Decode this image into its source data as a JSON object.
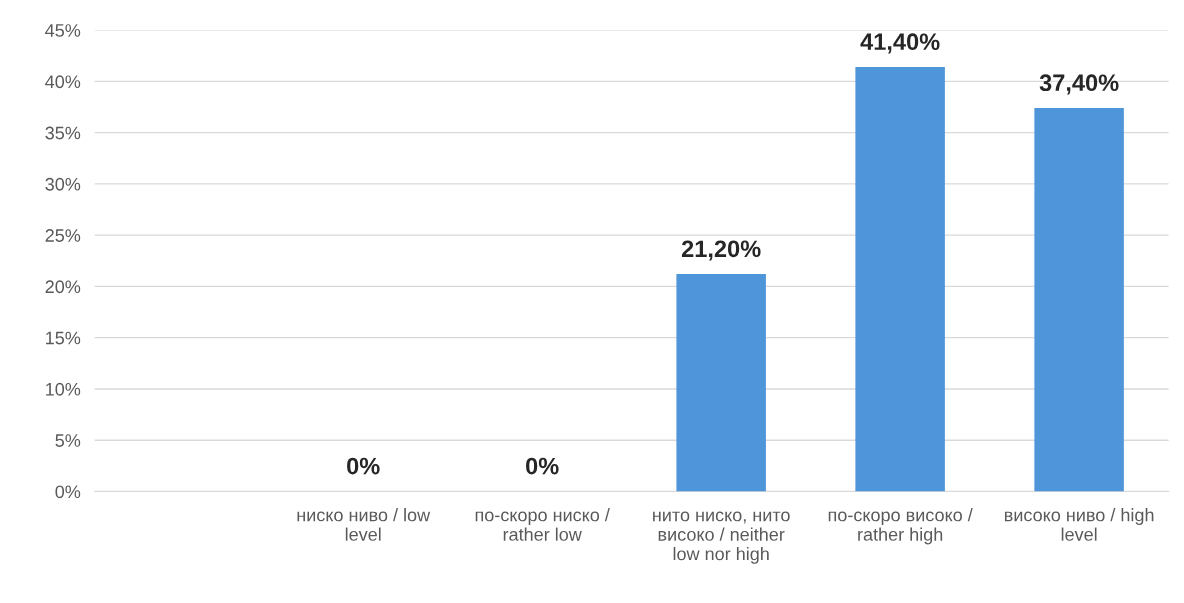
{
  "chart_data": {
    "type": "bar",
    "categories": [
      null,
      "ниско ниво / low level",
      "по-скоро ниско / rather low",
      "нито ниско, нито високо / neither low nor high",
      "по-скоро високо / rather high",
      "високо ниво / high level"
    ],
    "values": [
      null,
      0,
      0,
      21.2,
      41.4,
      37.4
    ],
    "value_labels": [
      null,
      "0%",
      "0%",
      "21,20%",
      "41,40%",
      "37,40%"
    ],
    "color": "#4e95d9",
    "ylim": [
      0,
      45
    ],
    "yticks": [
      {
        "value": 0,
        "label": "0%"
      },
      {
        "value": 5,
        "label": "5%"
      },
      {
        "value": 10,
        "label": "10%"
      },
      {
        "value": 15,
        "label": "15%"
      },
      {
        "value": 20,
        "label": "20%"
      },
      {
        "value": 25,
        "label": "25%"
      },
      {
        "value": 30,
        "label": "30%"
      },
      {
        "value": 35,
        "label": "35%"
      },
      {
        "value": 40,
        "label": "40%"
      },
      {
        "value": 45,
        "label": "45%"
      }
    ],
    "grid": "y"
  }
}
